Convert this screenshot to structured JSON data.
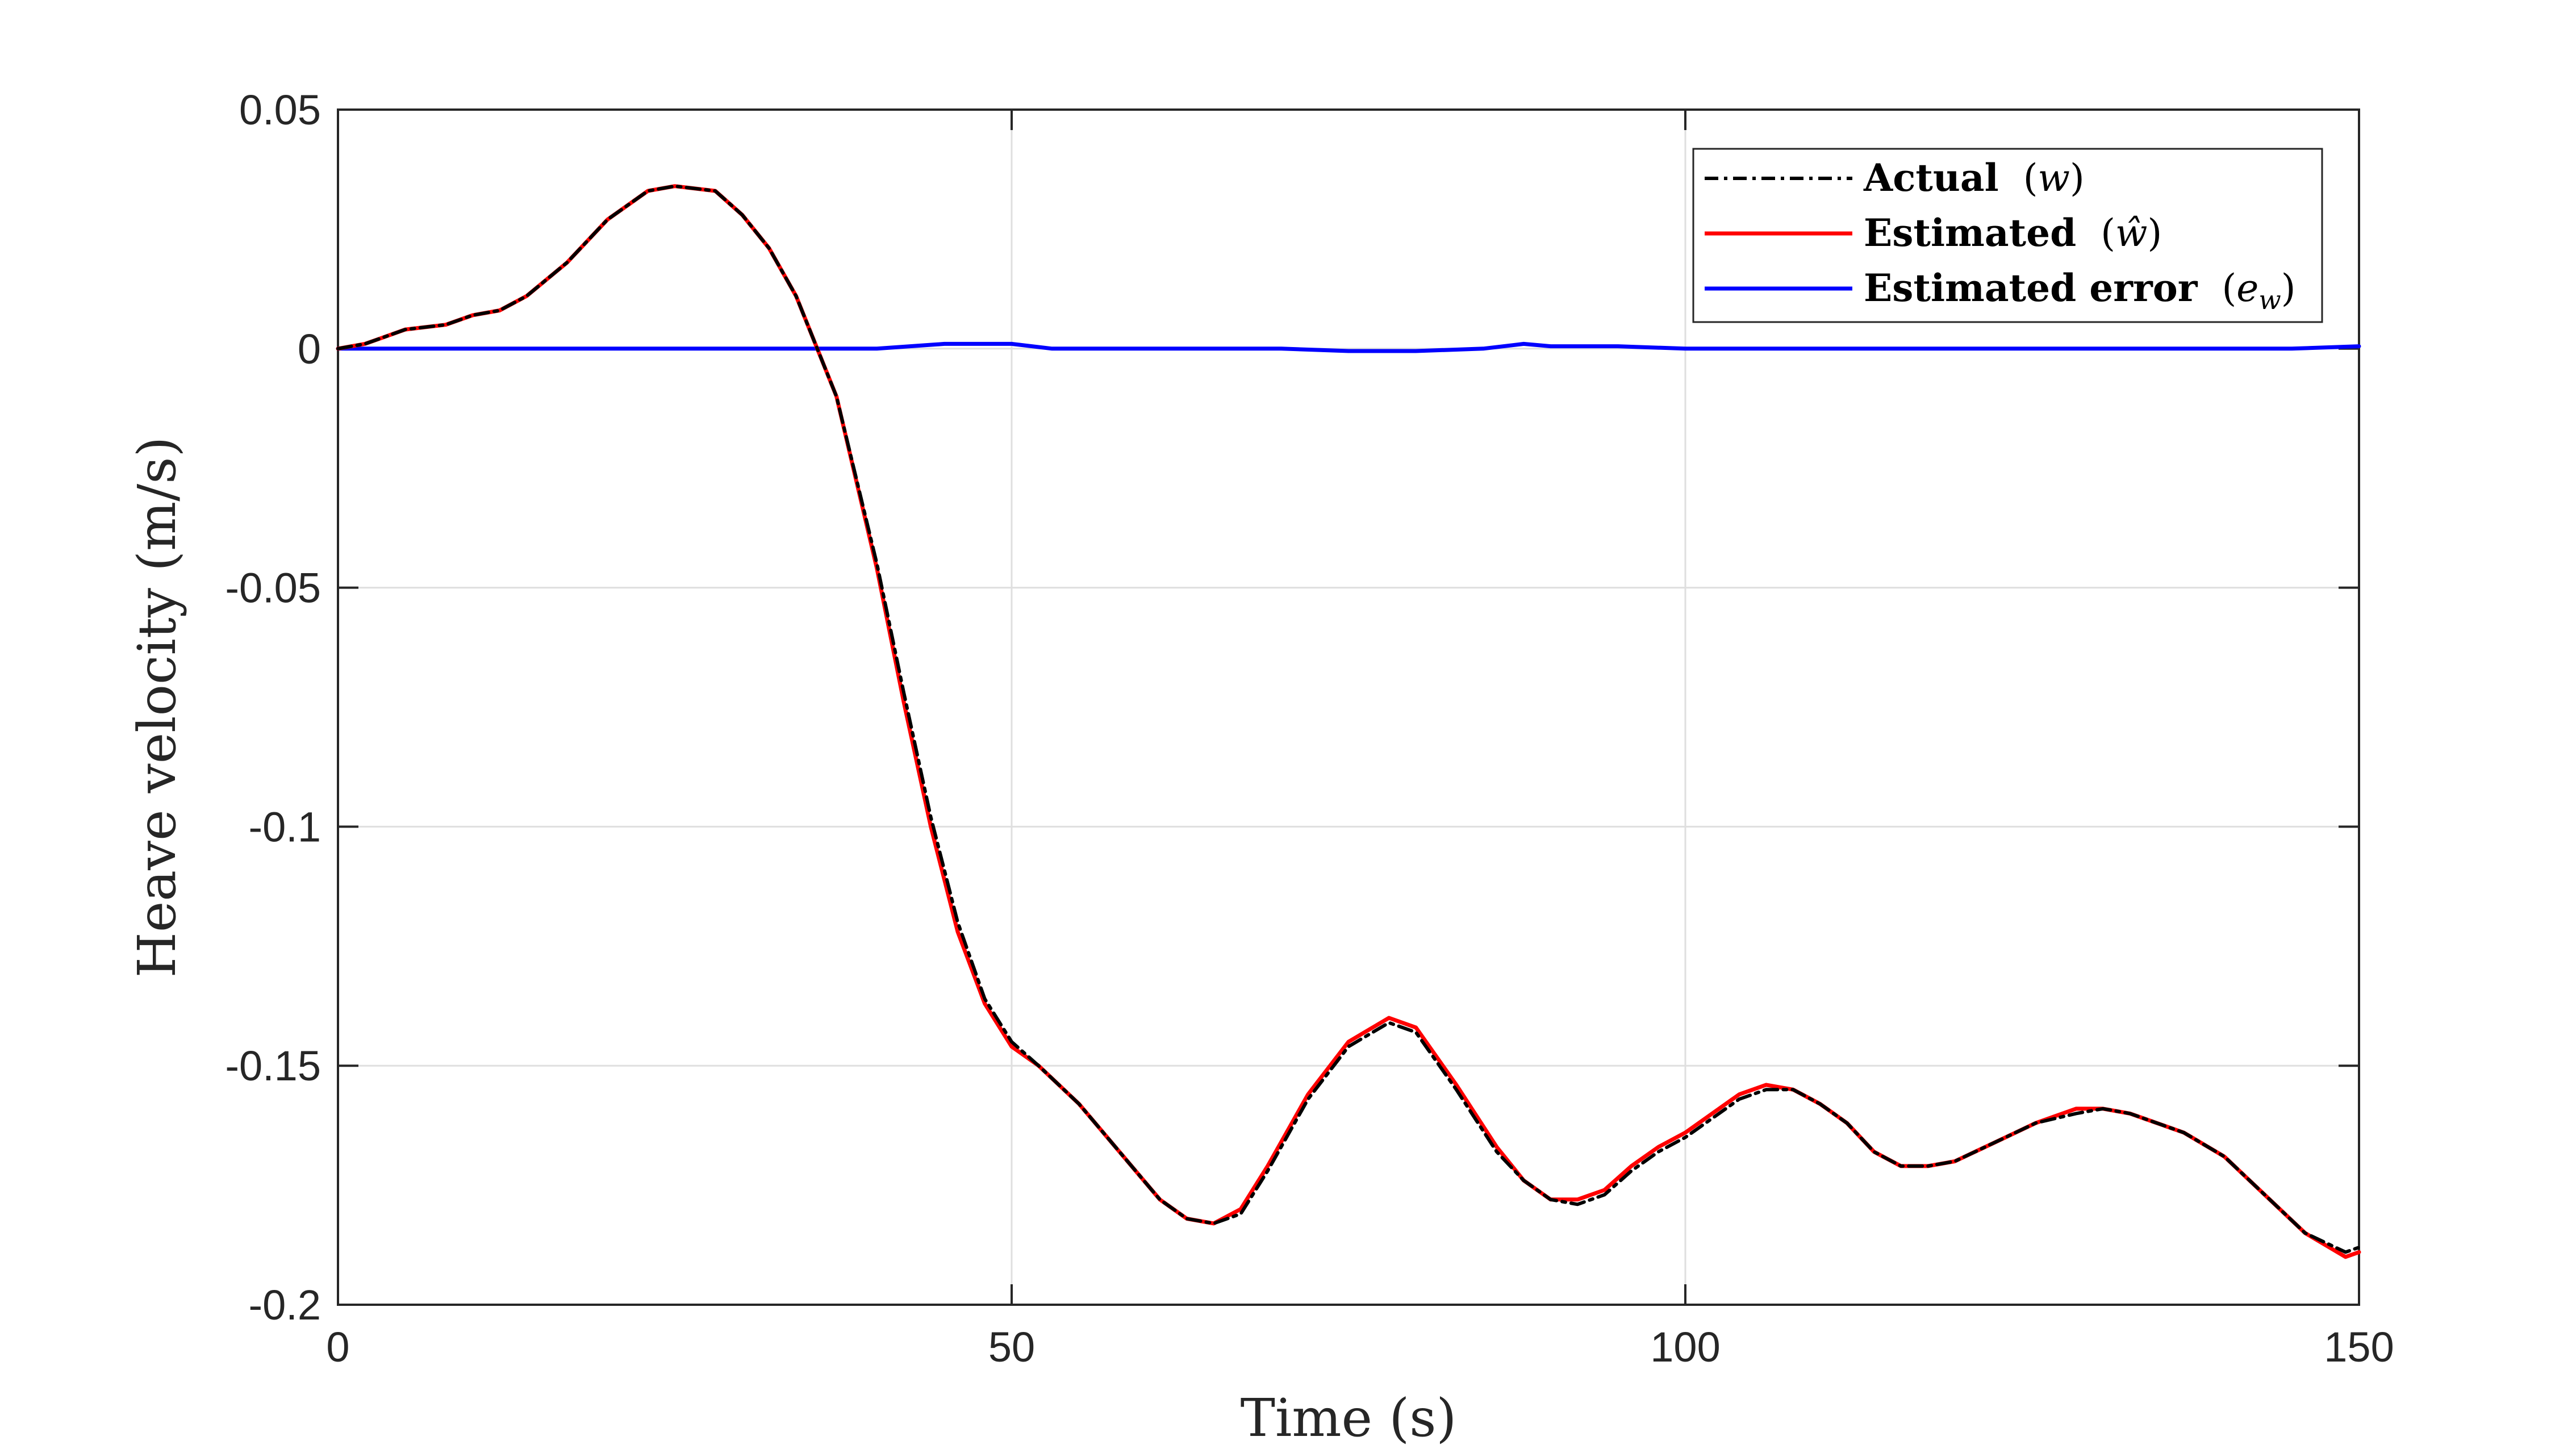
{
  "chart_data": {
    "type": "line",
    "xlabel": "Time (s)",
    "ylabel": "Heave velocity (m/s)",
    "xlim": [
      0,
      150
    ],
    "ylim": [
      -0.2,
      0.05
    ],
    "xticks": [
      0,
      50,
      100,
      150
    ],
    "xtick_labels": [
      "0",
      "50",
      "100",
      "150"
    ],
    "yticks": [
      0.05,
      0,
      -0.05,
      -0.1,
      -0.15,
      -0.2
    ],
    "ytick_labels": [
      "0.05",
      "0",
      "-0.05",
      "-0.1",
      "-0.15",
      "-0.2"
    ],
    "grid": true,
    "legend_position": "top-right",
    "series": [
      {
        "name": "Actual (w)",
        "legend_bold": "Actual",
        "legend_math_prefix": "(",
        "legend_math_symbol": "w",
        "legend_math_suffix": ")",
        "color": "#000000",
        "style": "dashdot",
        "x": [
          0,
          2,
          3,
          5,
          8,
          10,
          12,
          14,
          17,
          20,
          23,
          25,
          28,
          30,
          32,
          34,
          35,
          37,
          40,
          42,
          44,
          46,
          48,
          50,
          52,
          55,
          58,
          61,
          63,
          65,
          67,
          69,
          72,
          75,
          78,
          80,
          83,
          86,
          88,
          90,
          92,
          94,
          96,
          98,
          100,
          102,
          104,
          106,
          108,
          110,
          112,
          114,
          116,
          118,
          120,
          123,
          126,
          129,
          131,
          133,
          135,
          137,
          140,
          143,
          146,
          149,
          150
        ],
        "y": [
          0.0,
          0.001,
          0.002,
          0.004,
          0.005,
          0.007,
          0.008,
          0.011,
          0.018,
          0.027,
          0.033,
          0.034,
          0.033,
          0.028,
          0.021,
          0.011,
          0.004,
          -0.01,
          -0.045,
          -0.072,
          -0.098,
          -0.12,
          -0.136,
          -0.145,
          -0.15,
          -0.158,
          -0.168,
          -0.178,
          -0.182,
          -0.183,
          -0.181,
          -0.172,
          -0.157,
          -0.146,
          -0.141,
          -0.143,
          -0.155,
          -0.168,
          -0.174,
          -0.178,
          -0.179,
          -0.177,
          -0.172,
          -0.168,
          -0.165,
          -0.161,
          -0.157,
          -0.155,
          -0.155,
          -0.158,
          -0.162,
          -0.168,
          -0.171,
          -0.171,
          -0.17,
          -0.166,
          -0.162,
          -0.16,
          -0.159,
          -0.16,
          -0.162,
          -0.164,
          -0.169,
          -0.177,
          -0.185,
          -0.189,
          -0.188
        ]
      },
      {
        "name": "Estimated (ŵ)",
        "legend_bold": "Estimated",
        "legend_math_prefix": "(",
        "legend_math_symbol": "ŵ",
        "legend_math_suffix": ")",
        "color": "#ff0000",
        "style": "solid",
        "x": [
          0,
          2,
          3,
          5,
          8,
          10,
          12,
          14,
          17,
          20,
          23,
          25,
          28,
          30,
          32,
          34,
          35,
          37,
          40,
          42,
          44,
          46,
          48,
          50,
          52,
          55,
          58,
          61,
          63,
          65,
          67,
          69,
          72,
          75,
          78,
          80,
          83,
          86,
          88,
          90,
          92,
          94,
          96,
          98,
          100,
          102,
          104,
          106,
          108,
          110,
          112,
          114,
          116,
          118,
          120,
          123,
          126,
          129,
          131,
          133,
          135,
          137,
          140,
          143,
          146,
          149,
          150
        ],
        "y": [
          0.0,
          0.001,
          0.002,
          0.004,
          0.005,
          0.007,
          0.008,
          0.011,
          0.018,
          0.027,
          0.033,
          0.034,
          0.033,
          0.028,
          0.021,
          0.011,
          0.004,
          -0.01,
          -0.046,
          -0.074,
          -0.1,
          -0.122,
          -0.137,
          -0.146,
          -0.15,
          -0.158,
          -0.168,
          -0.178,
          -0.182,
          -0.183,
          -0.18,
          -0.171,
          -0.156,
          -0.145,
          -0.14,
          -0.142,
          -0.154,
          -0.167,
          -0.174,
          -0.178,
          -0.178,
          -0.176,
          -0.171,
          -0.167,
          -0.164,
          -0.16,
          -0.156,
          -0.154,
          -0.155,
          -0.158,
          -0.162,
          -0.168,
          -0.171,
          -0.171,
          -0.17,
          -0.166,
          -0.162,
          -0.159,
          -0.159,
          -0.16,
          -0.162,
          -0.164,
          -0.169,
          -0.177,
          -0.185,
          -0.19,
          -0.189
        ]
      },
      {
        "name": "Estimated error (e_w)",
        "legend_bold": "Estimated error",
        "legend_math_prefix": "(",
        "legend_math_symbol": "e",
        "legend_math_subscript": "w",
        "legend_math_suffix": ")",
        "color": "#0000ff",
        "style": "solid",
        "x": [
          0,
          5,
          10,
          15,
          20,
          25,
          30,
          35,
          40,
          45,
          50,
          53,
          55,
          60,
          65,
          70,
          75,
          80,
          85,
          88,
          90,
          95,
          100,
          105,
          110,
          115,
          120,
          125,
          130,
          135,
          140,
          145,
          150
        ],
        "y": [
          0.0,
          0.0,
          0.0,
          0.0,
          0.0,
          0.0,
          0.0,
          0.0,
          0.0,
          0.001,
          0.001,
          0.0,
          0.0,
          0.0,
          0.0,
          0.0,
          -0.0005,
          -0.0005,
          0.0,
          0.001,
          0.0005,
          0.0005,
          0.0,
          0.0,
          0.0,
          0.0,
          0.0,
          0.0,
          0.0,
          0.0,
          0.0,
          0.0,
          0.0005
        ]
      }
    ]
  }
}
